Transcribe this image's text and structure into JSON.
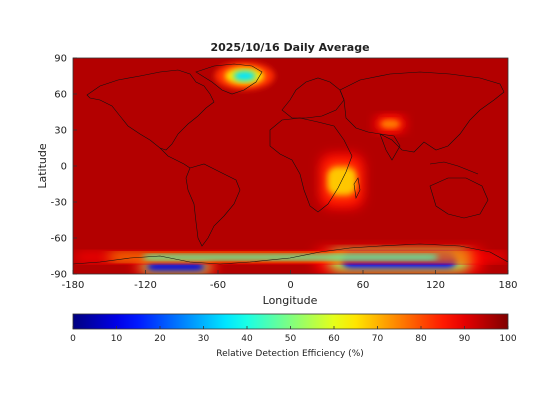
{
  "title": "2025/10/16 Daily Average",
  "x_axis": {
    "label": "Longitude",
    "ticks": [
      -180,
      -120,
      -60,
      0,
      60,
      120,
      180
    ],
    "range": [
      -180,
      180
    ]
  },
  "y_axis": {
    "label": "Latitude",
    "ticks": [
      90,
      60,
      30,
      0,
      -30,
      -60,
      -90
    ],
    "range": [
      -90,
      90
    ]
  },
  "colorbar": {
    "label": "Relative Detection Efficiency (%)",
    "ticks": [
      0,
      10,
      20,
      30,
      40,
      50,
      60,
      70,
      80,
      90,
      100
    ],
    "range": [
      0,
      100
    ],
    "colormap": "jet",
    "orientation": "horizontal"
  },
  "field": {
    "variable": "Relative Detection Efficiency (%)",
    "background_value": 95,
    "features": [
      {
        "region": "Greenland",
        "lon": -38,
        "lat": 75,
        "min_value": 35
      },
      {
        "region": "Antarctica (East)",
        "lon_range": [
          20,
          160
        ],
        "lat_range": [
          -90,
          -68
        ],
        "min_value": 12
      },
      {
        "region": "Antarctica (West)",
        "lon_range": [
          -130,
          -60
        ],
        "lat_range": [
          -90,
          -78
        ],
        "min_value": 10
      },
      {
        "region": "Antarctic coastal band",
        "lon_range": [
          -180,
          180
        ],
        "lat_range": [
          -80,
          -72
        ],
        "min_value": 45
      },
      {
        "region": "East Africa / Arabian Sea",
        "lon_range": [
          25,
          60
        ],
        "lat_range": [
          -35,
          10
        ],
        "min_value": 68
      },
      {
        "region": "Tibet / Himalaya",
        "lon_range": [
          70,
          95
        ],
        "lat_range": [
          28,
          42
        ],
        "min_value": 75
      }
    ]
  }
}
